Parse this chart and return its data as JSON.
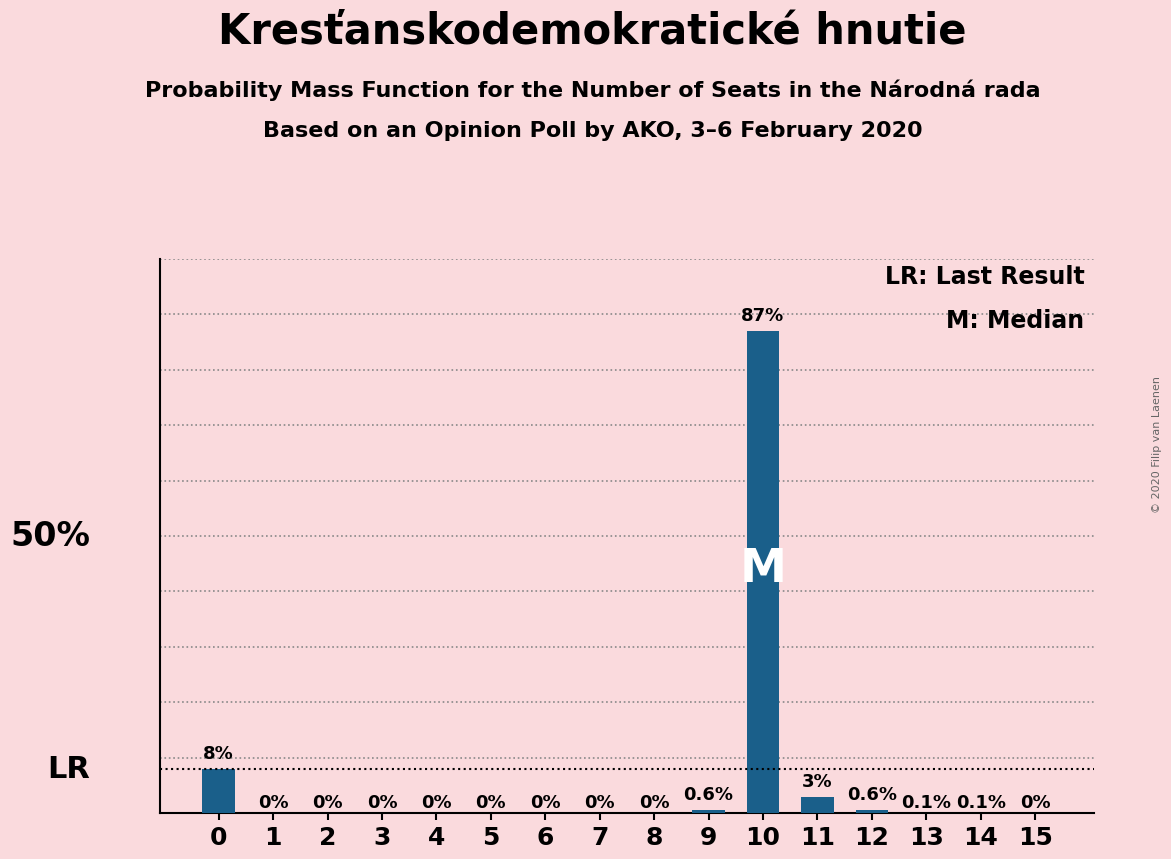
{
  "title": "Kresťanskodemokratické hnutie",
  "subtitle1": "Probability Mass Function for the Number of Seats in the Národná rada",
  "subtitle2": "Based on an Opinion Poll by AKO, 3–6 February 2020",
  "copyright": "© 2020 Filip van Laenen",
  "categories": [
    0,
    1,
    2,
    3,
    4,
    5,
    6,
    7,
    8,
    9,
    10,
    11,
    12,
    13,
    14,
    15
  ],
  "values": [
    0.08,
    0.0,
    0.0,
    0.0,
    0.0,
    0.0,
    0.0,
    0.0,
    0.0,
    0.006,
    0.87,
    0.03,
    0.006,
    0.001,
    0.001,
    0.0
  ],
  "bar_labels": [
    "8%",
    "0%",
    "0%",
    "0%",
    "0%",
    "0%",
    "0%",
    "0%",
    "0%",
    "0.6%",
    "87%",
    "3%",
    "0.6%",
    "0.1%",
    "0.1%",
    "0%"
  ],
  "bar_color": "#1a5f8a",
  "background_color": "#fadadd",
  "ylim": [
    0,
    1.0
  ],
  "ytick_positions": [
    0.0,
    0.1,
    0.2,
    0.3,
    0.4,
    0.5,
    0.6,
    0.7,
    0.8,
    0.9,
    1.0
  ],
  "ylabel_50pct": "50%",
  "ylabel_50pct_pos": 0.5,
  "lr_value": 0.08,
  "lr_seat": 0,
  "median_seat": 10,
  "lr_label": "LR",
  "median_label": "M",
  "legend_lr": "LR: Last Result",
  "legend_m": "M: Median",
  "title_fontsize": 30,
  "subtitle_fontsize": 16,
  "axis_tick_fontsize": 18,
  "bar_label_fontsize": 13,
  "ylabel_fontsize": 24,
  "annotation_fontsize": 22,
  "legend_fontsize": 17,
  "copyright_fontsize": 8
}
